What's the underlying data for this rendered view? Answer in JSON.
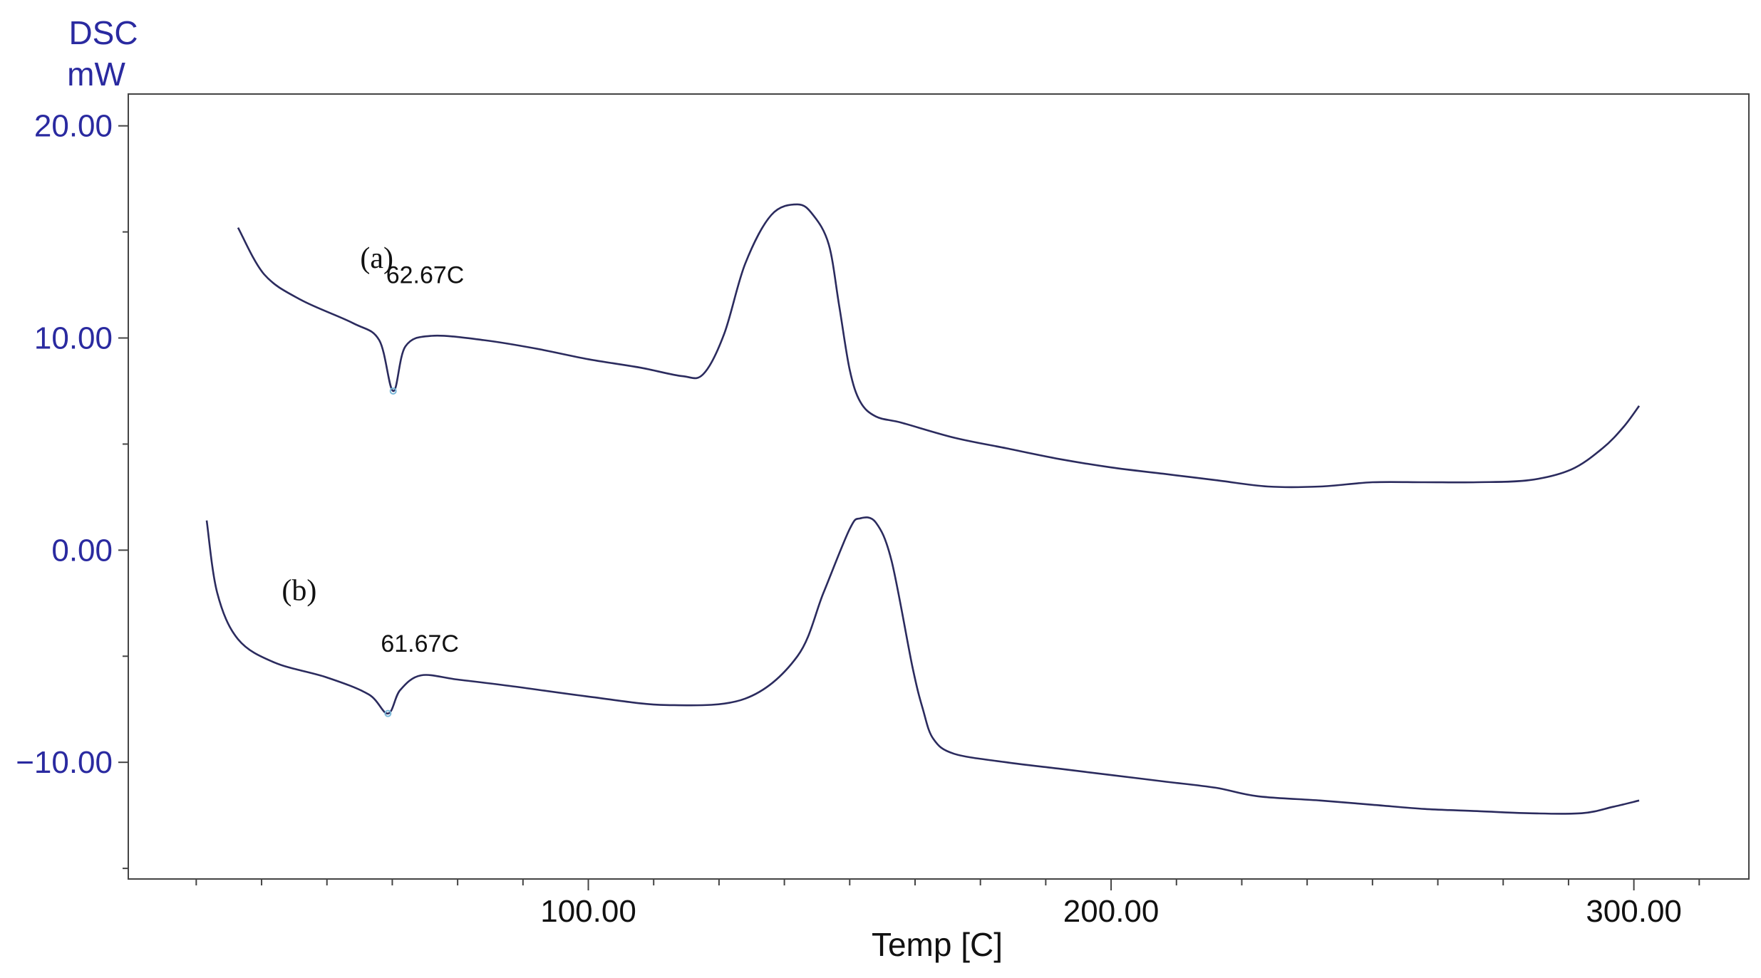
{
  "chart_data": {
    "type": "line",
    "ylabel_lines": [
      "DSC",
      "mW"
    ],
    "xlabel": "Temp  [C]",
    "xlim": [
      12,
      322
    ],
    "ylim": [
      -15.5,
      21.5
    ],
    "x_ticks": [
      100,
      200,
      300
    ],
    "x_tick_labels": [
      "100.00",
      "200.00",
      "300.00"
    ],
    "x_minor_step": 12.5,
    "y_ticks": [
      20,
      10,
      0,
      -10
    ],
    "y_tick_labels": [
      "20.00",
      "10.00",
      "0.00",
      "−10.00"
    ],
    "y_minor_step": 5,
    "grid": false,
    "series": [
      {
        "name": "(a)",
        "x": [
          33,
          38,
          45,
          55,
          60,
          62.67,
          65,
          70,
          80,
          90,
          100,
          110,
          118,
          122,
          126,
          130,
          135,
          140,
          143,
          146,
          148,
          150,
          152,
          155,
          160,
          170,
          180,
          190,
          200,
          210,
          220,
          230,
          240,
          250,
          260,
          270,
          280,
          288,
          294,
          298,
          301
        ],
        "y": [
          15.2,
          13.0,
          11.8,
          10.7,
          9.9,
          7.5,
          9.6,
          10.1,
          9.9,
          9.5,
          9.0,
          8.6,
          8.2,
          8.3,
          10.2,
          13.5,
          15.8,
          16.3,
          15.8,
          14.4,
          11.5,
          8.5,
          7.0,
          6.3,
          6.0,
          5.3,
          4.8,
          4.3,
          3.9,
          3.6,
          3.3,
          3.0,
          3.0,
          3.2,
          3.2,
          3.2,
          3.3,
          3.8,
          4.8,
          5.8,
          6.8
        ]
      },
      {
        "name": "(b)",
        "x": [
          27,
          29,
          33,
          40,
          50,
          58,
          61.67,
          64,
          68,
          75,
          85,
          100,
          115,
          130,
          140,
          145,
          150,
          152,
          155,
          158,
          162,
          164,
          166,
          170,
          180,
          190,
          200,
          210,
          220,
          228,
          240,
          250,
          260,
          270,
          280,
          290,
          296,
          301
        ],
        "y": [
          1.4,
          -2.0,
          -4.2,
          -5.3,
          -6.0,
          -6.8,
          -7.7,
          -6.6,
          -5.9,
          -6.1,
          -6.4,
          -6.9,
          -7.3,
          -7.0,
          -5.0,
          -2.0,
          1.0,
          1.5,
          1.3,
          -0.5,
          -5.5,
          -7.5,
          -8.9,
          -9.6,
          -10.0,
          -10.3,
          -10.6,
          -10.9,
          -11.2,
          -11.6,
          -11.8,
          -12.0,
          -12.2,
          -12.3,
          -12.4,
          -12.4,
          -12.1,
          -11.8
        ]
      }
    ],
    "annotations": [
      {
        "series": 0,
        "x": 62.67,
        "y": 7.5,
        "text": "62.67C",
        "marker_color": "#7ab8d8"
      },
      {
        "series": 1,
        "x": 61.67,
        "y": -7.7,
        "text": "61.67C",
        "marker_color": "#7ab8d8"
      }
    ]
  }
}
